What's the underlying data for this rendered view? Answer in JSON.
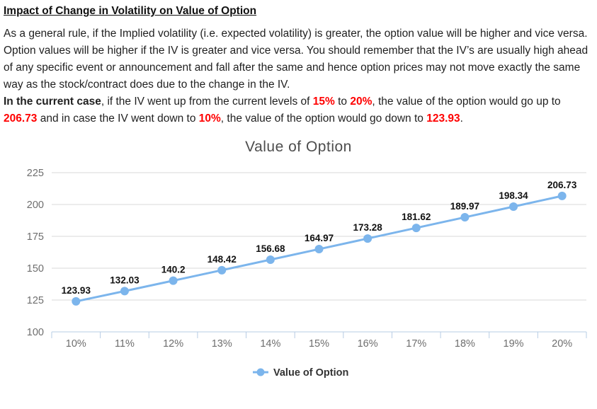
{
  "doc": {
    "title": "Impact of Change in Volatility on Value of Option",
    "paragraphs": [
      [
        {
          "text": "As a general rule, if the Implied volatility (i.e. expected volatility) is greater, the option value will be higher and vice versa.",
          "style": "normal"
        }
      ],
      [
        {
          "text": "Option values will be higher if the IV is greater and vice versa. You should remember that the IV’s are usually high ahead of any specific event or announcement and fall after the same and hence option prices may not move exactly the same way as the stock/contract does due to the change in the IV.",
          "style": "normal"
        }
      ],
      [
        {
          "text": "In the current case",
          "style": "bold"
        },
        {
          "text": ", if the IV went up from the current levels of ",
          "style": "normal"
        },
        {
          "text": "15%",
          "style": "red-bold"
        },
        {
          "text": " to ",
          "style": "normal"
        },
        {
          "text": "20%",
          "style": "red-bold"
        },
        {
          "text": ", the value of the option would go up to ",
          "style": "normal"
        },
        {
          "text": "206.73",
          "style": "red-bold"
        },
        {
          "text": " and in case the IV went down to ",
          "style": "normal"
        },
        {
          "text": "10%",
          "style": "red-bold"
        },
        {
          "text": ", the value of the option would go down to ",
          "style": "normal"
        },
        {
          "text": "123.93",
          "style": "red-bold"
        },
        {
          "text": ".",
          "style": "normal"
        }
      ]
    ]
  },
  "chart_data": {
    "type": "line",
    "title": "Value of Option",
    "categories": [
      "10%",
      "11%",
      "12%",
      "13%",
      "14%",
      "15%",
      "16%",
      "17%",
      "18%",
      "19%",
      "20%"
    ],
    "series": [
      {
        "name": "Value of Option",
        "values": [
          123.93,
          132.03,
          140.2,
          148.42,
          156.68,
          164.97,
          173.28,
          181.62,
          189.97,
          198.34,
          206.73
        ]
      }
    ],
    "data_labels": [
      "123.93",
      "132.03",
      "140.2",
      "148.42",
      "156.68",
      "164.97",
      "173.28",
      "181.62",
      "189.97",
      "198.34",
      "206.73"
    ],
    "xlabel": "",
    "ylabel": "",
    "ylim": [
      100,
      225
    ],
    "y_ticks": [
      100,
      125,
      150,
      175,
      200,
      225
    ],
    "grid": true,
    "legend_position": "bottom",
    "colors": {
      "series": "#7cb5ec",
      "grid": "#d9d9d9",
      "axis": "#b7cce4",
      "axis_label": "#6e6e6e",
      "data_label": "#111111",
      "chart_title": "#4d4d4d",
      "legend_text": "#333333",
      "accent_red": "#ff0000",
      "body_text": "#1f1f1f"
    }
  }
}
